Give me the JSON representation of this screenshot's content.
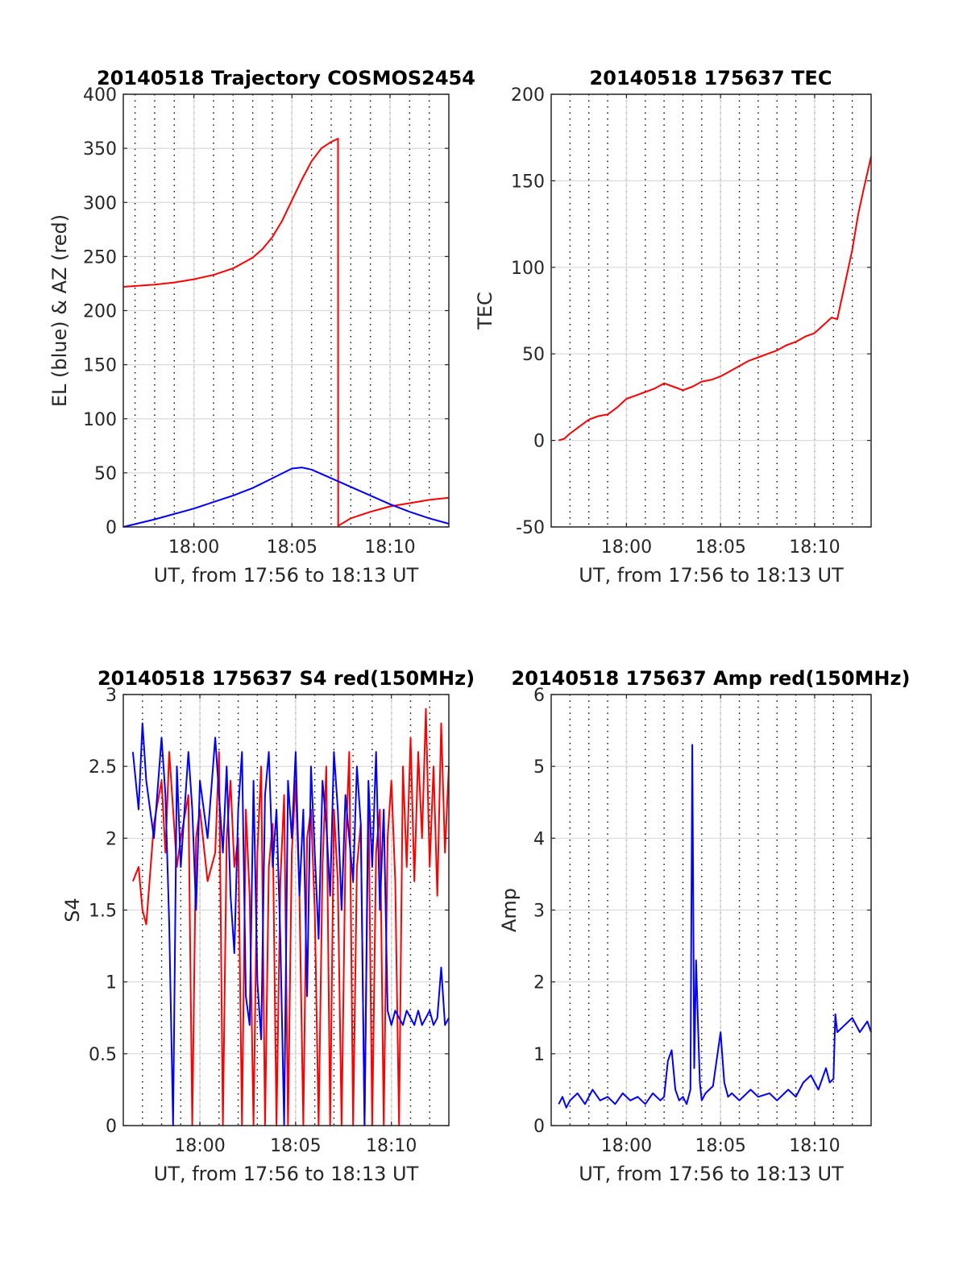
{
  "figure": {
    "x_axis_label": "UT, from 17:56 to 18:13 UT",
    "x_tick_labels": [
      "18:00",
      "18:05",
      "18:10"
    ],
    "colors": {
      "red": "#ff0000",
      "blue": "#0000ff",
      "grid": "#d9d9d9",
      "axis": "#262626"
    }
  },
  "chart_data": [
    {
      "type": "line",
      "title": "20140518 Trajectory COSMOS2454",
      "xlabel": "UT, from 17:56 to 18:13 UT",
      "ylabel": "EL (blue) & AZ (red)",
      "x_unit": "minutes after 18:00 UT",
      "xlim": [
        -3.6,
        13.0
      ],
      "ylim": [
        0,
        400
      ],
      "x_ticks": [
        "18:00",
        "18:05",
        "18:10"
      ],
      "y_ticks": [
        0,
        50,
        100,
        150,
        200,
        250,
        300,
        350,
        400
      ],
      "grid": true,
      "series": [
        {
          "name": "AZ (red)",
          "color": "#ff0000",
          "x": [
            -3.6,
            -2,
            -1,
            0,
            1,
            2,
            3,
            3.5,
            4,
            4.5,
            5,
            5.5,
            6,
            6.5,
            7,
            7.35,
            7.36,
            8,
            9,
            10,
            11,
            12,
            13
          ],
          "y": [
            222,
            224,
            226,
            229,
            233,
            239,
            249,
            257,
            268,
            283,
            302,
            321,
            338,
            350,
            356,
            359,
            1,
            8,
            14,
            19,
            22,
            25,
            27
          ]
        },
        {
          "name": "EL (blue)",
          "color": "#0000ff",
          "x": [
            -3.6,
            -2,
            -1,
            0,
            1,
            2,
            3,
            4,
            5,
            5.5,
            6,
            7,
            8,
            9,
            10,
            11,
            12,
            13
          ],
          "y": [
            0,
            7,
            12,
            17,
            23,
            29,
            36,
            45,
            54,
            55,
            53,
            45,
            37,
            29,
            21,
            14,
            8,
            3
          ]
        }
      ]
    },
    {
      "type": "line",
      "title": "20140518 175637 TEC",
      "xlabel": "UT, from 17:56 to 18:13 UT",
      "ylabel": "TEC",
      "x_unit": "minutes after 18:00 UT",
      "xlim": [
        -4,
        13
      ],
      "ylim": [
        -50,
        200
      ],
      "x_ticks": [
        "18:00",
        "18:05",
        "18:10"
      ],
      "y_ticks": [
        -50,
        0,
        50,
        100,
        150,
        200
      ],
      "grid": true,
      "series": [
        {
          "name": "TEC",
          "color": "#ff0000",
          "x": [
            -3.6,
            -3.3,
            -3,
            -2.5,
            -2,
            -1.5,
            -1,
            -0.5,
            0,
            0.5,
            1,
            1.5,
            2,
            2.5,
            3,
            3.5,
            4,
            4.5,
            5,
            5.5,
            6,
            6.5,
            7,
            7.5,
            8,
            8.5,
            9,
            9.5,
            10,
            10.5,
            10.9,
            11.2,
            11.6,
            12.0,
            12.3,
            12.6,
            13.0
          ],
          "y": [
            0,
            1,
            4,
            8,
            12,
            14,
            15,
            19,
            24,
            26,
            28,
            30,
            33,
            31,
            29,
            31,
            34,
            35,
            37,
            40,
            43,
            46,
            48,
            50,
            52,
            55,
            57,
            60,
            62,
            67,
            71,
            70,
            90,
            110,
            130,
            145,
            164
          ]
        }
      ]
    },
    {
      "type": "line",
      "title": "20140518 175637 S4 red(150MHz)",
      "xlabel": "UT, from 17:56 to 18:13 UT",
      "ylabel": "S4",
      "x_unit": "minutes after 18:00 UT",
      "xlim": [
        -4,
        13
      ],
      "ylim": [
        0,
        3
      ],
      "x_ticks": [
        "18:00",
        "18:05",
        "18:10"
      ],
      "y_ticks": [
        0,
        0.5,
        1,
        1.5,
        2,
        2.5,
        3
      ],
      "grid": true,
      "series": [
        {
          "name": "S4 red",
          "color": "#ff0000",
          "x": [
            -3.5,
            -3.2,
            -3.0,
            -2.8,
            -2.4,
            -2.0,
            -1.8,
            -1.6,
            -1.4,
            -1.2,
            -1.0,
            -0.6,
            -0.4,
            -0.2,
            0.0,
            0.4,
            0.8,
            1.0,
            1.2,
            1.4,
            1.6,
            1.8,
            2.0,
            2.2,
            2.4,
            2.6,
            2.8,
            3.0,
            3.2,
            3.4,
            3.6,
            3.8,
            4.0,
            4.2,
            4.4,
            4.6,
            4.8,
            5.0,
            5.2,
            5.4,
            5.6,
            5.8,
            6.0,
            6.2,
            6.4,
            6.6,
            6.8,
            7.0,
            7.2,
            7.4,
            7.6,
            7.8,
            8.0,
            8.2,
            8.4,
            8.6,
            8.8,
            9.0,
            9.2,
            9.4,
            9.6,
            9.8,
            10.0,
            10.2,
            10.4,
            10.6,
            10.8,
            11.0,
            11.2,
            11.4,
            11.6,
            11.8,
            12.0,
            12.2,
            12.4,
            12.6,
            12.8,
            13.0
          ],
          "y": [
            1.7,
            1.8,
            1.5,
            1.4,
            2.1,
            2.4,
            1.9,
            2.6,
            2.2,
            1.8,
            2.0,
            2.3,
            0.0,
            2.0,
            2.2,
            1.7,
            1.9,
            2.6,
            0.0,
            2.0,
            2.4,
            1.8,
            2.0,
            0.0,
            2.2,
            1.6,
            0.0,
            1.9,
            2.5,
            0.0,
            1.8,
            2.1,
            0.0,
            1.7,
            2.3,
            0.0,
            1.9,
            2.4,
            1.6,
            0.0,
            2.0,
            2.2,
            1.5,
            0.0,
            1.8,
            2.5,
            0.0,
            2.2,
            1.7,
            0.0,
            1.9,
            2.6,
            0.0,
            1.8,
            2.1,
            0.0,
            2.3,
            0.0,
            1.9,
            2.2,
            0.0,
            2.0,
            2.4,
            1.7,
            0.0,
            2.5,
            1.8,
            2.7,
            1.7,
            2.6,
            2.0,
            2.9,
            1.8,
            2.5,
            1.6,
            2.8,
            1.9,
            2.5
          ]
        },
        {
          "name": "S4 blue",
          "color": "#0000ff",
          "x": [
            -3.5,
            -3.2,
            -3.0,
            -2.8,
            -2.4,
            -2.0,
            -1.8,
            -1.6,
            -1.4,
            -1.2,
            -1.0,
            -0.6,
            -0.4,
            -0.2,
            0.0,
            0.4,
            0.8,
            1.0,
            1.2,
            1.4,
            1.6,
            1.8,
            2.0,
            2.2,
            2.4,
            2.6,
            2.8,
            3.0,
            3.2,
            3.4,
            3.6,
            3.8,
            4.0,
            4.2,
            4.4,
            4.6,
            4.8,
            5.0,
            5.2,
            5.4,
            5.6,
            5.8,
            6.0,
            6.2,
            6.4,
            6.6,
            6.8,
            7.0,
            7.2,
            7.4,
            7.6,
            7.8,
            8.0,
            8.2,
            8.4,
            8.6,
            8.8,
            9.0,
            9.2,
            9.4,
            9.6,
            9.8,
            10.0,
            10.2,
            10.4,
            10.6,
            10.8,
            11.0,
            11.2,
            11.4,
            11.6,
            11.8,
            12.0,
            12.2,
            12.4,
            12.6,
            12.8,
            13.0
          ],
          "y": [
            2.6,
            2.2,
            2.8,
            2.4,
            2.0,
            2.7,
            2.3,
            1.4,
            0.0,
            2.5,
            1.8,
            2.6,
            2.2,
            1.5,
            2.4,
            2.0,
            2.7,
            2.3,
            1.9,
            2.5,
            1.6,
            1.2,
            2.2,
            2.6,
            0.9,
            0.7,
            2.4,
            1.0,
            0.6,
            2.3,
            2.6,
            1.8,
            2.2,
            1.3,
            0.0,
            2.4,
            2.0,
            2.6,
            1.6,
            2.2,
            0.9,
            2.5,
            1.9,
            1.3,
            2.4,
            2.1,
            1.6,
            2.6,
            2.2,
            1.5,
            2.3,
            2.0,
            1.7,
            2.5,
            2.1,
            0.0,
            2.4,
            1.8,
            2.6,
            1.5,
            2.2,
            0.8,
            0.7,
            0.8,
            0.75,
            0.7,
            0.8,
            0.75,
            0.7,
            0.8,
            0.7,
            0.75,
            0.8,
            0.7,
            0.75,
            1.1,
            0.7,
            0.75
          ]
        }
      ]
    },
    {
      "type": "line",
      "title": "20140518 175637 Amp red(150MHz)",
      "xlabel": "UT, from 17:56 to 18:13 UT",
      "ylabel": "Amp",
      "x_unit": "minutes after 18:00 UT",
      "xlim": [
        -4,
        13
      ],
      "ylim": [
        0,
        6
      ],
      "x_ticks": [
        "18:00",
        "18:05",
        "18:10"
      ],
      "y_ticks": [
        0,
        1,
        2,
        3,
        4,
        5,
        6
      ],
      "grid": true,
      "series": [
        {
          "name": "Amp blue",
          "color": "#0000ff",
          "x": [
            -3.6,
            -3.4,
            -3.2,
            -3.0,
            -2.6,
            -2.2,
            -1.8,
            -1.4,
            -1.0,
            -0.6,
            -0.2,
            0.2,
            0.6,
            1.0,
            1.4,
            1.8,
            2.0,
            2.2,
            2.4,
            2.6,
            2.8,
            3.0,
            3.2,
            3.4,
            3.5,
            3.6,
            3.7,
            3.8,
            3.9,
            4.0,
            4.2,
            4.6,
            5.0,
            5.2,
            5.4,
            5.6,
            6.0,
            6.6,
            7.0,
            7.6,
            8.0,
            8.6,
            9.0,
            9.4,
            9.8,
            10.2,
            10.6,
            10.8,
            11.0,
            11.1,
            11.2,
            11.6,
            12.0,
            12.4,
            12.8,
            13.0
          ],
          "y": [
            0.3,
            0.4,
            0.25,
            0.35,
            0.45,
            0.3,
            0.5,
            0.35,
            0.4,
            0.3,
            0.45,
            0.35,
            0.4,
            0.3,
            0.45,
            0.35,
            0.4,
            0.9,
            1.05,
            0.5,
            0.35,
            0.4,
            0.3,
            0.5,
            5.3,
            0.8,
            2.3,
            1.4,
            0.6,
            0.35,
            0.45,
            0.55,
            1.3,
            0.6,
            0.4,
            0.45,
            0.35,
            0.5,
            0.4,
            0.45,
            0.35,
            0.5,
            0.4,
            0.6,
            0.7,
            0.5,
            0.8,
            0.6,
            0.65,
            1.55,
            1.3,
            1.4,
            1.5,
            1.3,
            1.45,
            1.3
          ]
        }
      ]
    }
  ]
}
